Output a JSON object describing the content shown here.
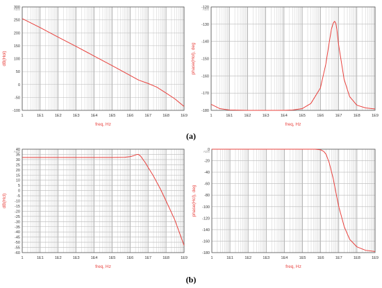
{
  "figure": {
    "captions": [
      "(a)",
      "(b)"
    ]
  },
  "chart_data": [
    {
      "type": "line",
      "ads_tag": "ADS",
      "xlabel": "freq, Hz",
      "ylabel": "dB(Hol)",
      "xscale": "log",
      "xlim": [
        1,
        1000000000
      ],
      "ylim": [
        -100,
        300
      ],
      "xticks": [
        1,
        10,
        100,
        1000,
        10000,
        100000,
        1000000,
        10000000,
        100000000,
        1000000000
      ],
      "xtick_labels": [
        "1",
        "1E1",
        "1E2",
        "1E3",
        "1E4",
        "1E5",
        "1E6",
        "1E7",
        "1E8",
        "1E9"
      ],
      "yticks": [
        -100,
        -50,
        0,
        50,
        100,
        150,
        200,
        250,
        300
      ],
      "ytick_labels": [
        "-100",
        "-50",
        "0",
        "50",
        "100",
        "150",
        "200",
        "250",
        "300"
      ],
      "grid": true,
      "series": [
        {
          "color": "#e8403c",
          "x": [
            1,
            10,
            100,
            1000,
            10000,
            100000,
            1000000,
            3000000,
            10000000,
            30000000,
            100000000,
            300000000,
            1000000000
          ],
          "y": [
            255,
            220,
            183,
            147,
            110,
            73,
            35,
            17,
            4,
            -10,
            -33,
            -55,
            -85
          ]
        }
      ]
    },
    {
      "type": "line",
      "ads_tag": "ADS",
      "xlabel": "freq, Hz",
      "ylabel": "phase(Hol), deg",
      "xscale": "log",
      "xlim": [
        1,
        1000000000
      ],
      "ylim": [
        -180,
        -120
      ],
      "xticks": [
        1,
        10,
        100,
        1000,
        10000,
        100000,
        1000000,
        10000000,
        100000000,
        1000000000
      ],
      "xtick_labels": [
        "1",
        "1E1",
        "1E2",
        "1E3",
        "1E4",
        "1E5",
        "1E6",
        "1E7",
        "1E8",
        "1E9"
      ],
      "yticks": [
        -180,
        -170,
        -160,
        -150,
        -140,
        -130,
        -120
      ],
      "ytick_labels": [
        "-180",
        "-170",
        "-160",
        "-150",
        "-140",
        "-130",
        "-120"
      ],
      "grid": true,
      "series": [
        {
          "color": "#e8403c",
          "x": [
            1,
            3,
            10,
            100,
            1000,
            10000,
            30000,
            100000,
            300000,
            1000000,
            2000000,
            3000000,
            4000000,
            5000000,
            6000000,
            7000000,
            8000000,
            10000000,
            20000000,
            40000000,
            100000000,
            300000000,
            1000000000
          ],
          "y": [
            -176.5,
            -179,
            -179.8,
            -180,
            -180,
            -180,
            -179.8,
            -179,
            -176,
            -167,
            -153,
            -141,
            -133,
            -129.5,
            -128.3,
            -129.5,
            -133,
            -142,
            -162,
            -172,
            -177,
            -178.6,
            -179.2
          ]
        }
      ]
    },
    {
      "type": "line",
      "ads_tag": "ADS",
      "xlabel": "freq, Hz",
      "ylabel": "dB(Hcl)",
      "xscale": "log",
      "xlim": [
        1,
        1000000000
      ],
      "ylim": [
        -60,
        40
      ],
      "xticks": [
        1,
        10,
        100,
        1000,
        10000,
        100000,
        1000000,
        10000000,
        100000000,
        1000000000
      ],
      "xtick_labels": [
        "1",
        "1E1",
        "1E2",
        "1E3",
        "1E4",
        "1E5",
        "1E6",
        "1E7",
        "1E8",
        "1E9"
      ],
      "yticks": [
        -60,
        -55,
        -50,
        -45,
        -40,
        -35,
        -30,
        -25,
        -20,
        -15,
        -10,
        -5,
        0,
        5,
        10,
        15,
        20,
        25,
        30,
        35,
        40
      ],
      "ytick_labels": [
        "-60",
        "-55",
        "-50",
        "-45",
        "-40",
        "-35",
        "-30",
        "-25",
        "-20",
        "-15",
        "-10",
        "-5",
        "0",
        "5",
        "10",
        "15",
        "20",
        "25",
        "30",
        "35",
        "40"
      ],
      "grid": true,
      "series": [
        {
          "color": "#e8403c",
          "x": [
            1,
            100,
            10000,
            100000,
            500000,
            1000000,
            1500000,
            2000000,
            2500000,
            3000000,
            4000000,
            5000000,
            7000000,
            10000000,
            20000000,
            50000000,
            100000000,
            300000000,
            1000000000
          ],
          "y": [
            32,
            32,
            32,
            32,
            32.2,
            32.8,
            33.6,
            34.4,
            35,
            34.8,
            33,
            30.5,
            27,
            22.5,
            14,
            1,
            -10,
            -28,
            -53
          ]
        }
      ]
    },
    {
      "type": "line",
      "ads_tag": "ADS",
      "xlabel": "freq, Hz",
      "ylabel": "phase(Hcl), deg",
      "xscale": "log",
      "xlim": [
        1,
        1000000000
      ],
      "ylim": [
        -180,
        0
      ],
      "xticks": [
        1,
        10,
        100,
        1000,
        10000,
        100000,
        1000000,
        10000000,
        100000000,
        1000000000
      ],
      "xtick_labels": [
        "1",
        "1E1",
        "1E2",
        "1E3",
        "1E4",
        "1E5",
        "1E6",
        "1E7",
        "1E8",
        "1E9"
      ],
      "yticks": [
        -180,
        -160,
        -140,
        -120,
        -100,
        -80,
        -60,
        -40,
        -20,
        0
      ],
      "ytick_labels": [
        "-180",
        "-160",
        "-140",
        "-120",
        "-100",
        "-80",
        "-60",
        "-40",
        "-20",
        "0"
      ],
      "grid": true,
      "series": [
        {
          "color": "#e8403c",
          "x": [
            1,
            100000,
            500000,
            1000000,
            1500000,
            2000000,
            3000000,
            5000000,
            7000000,
            10000000,
            20000000,
            40000000,
            100000000,
            300000000,
            1000000000
          ],
          "y": [
            0,
            0,
            0,
            -1,
            -4,
            -9,
            -24,
            -52,
            -76,
            -100,
            -135,
            -157,
            -170,
            -176,
            -178
          ]
        }
      ]
    }
  ]
}
